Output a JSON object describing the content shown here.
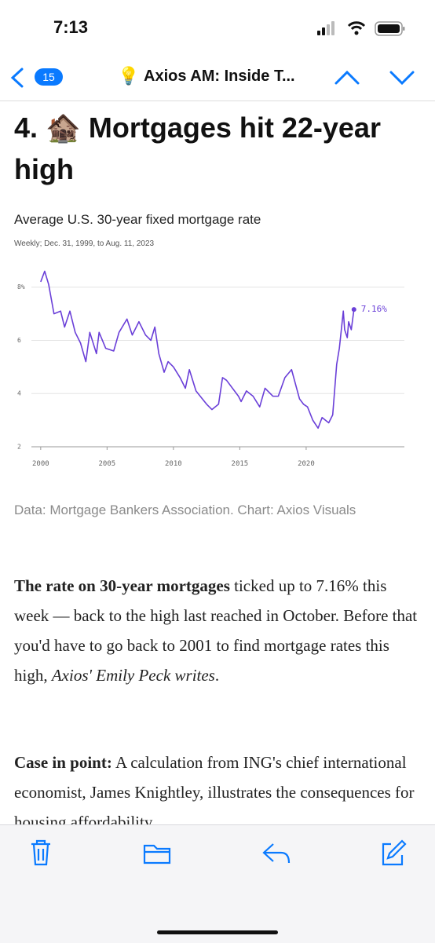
{
  "status_bar": {
    "time": "7:13"
  },
  "nav": {
    "badge": "15",
    "icon": "💡",
    "title": "Axios AM: Inside T..."
  },
  "article": {
    "heading": "4. 🏚️ Mortgages hit 22-year high",
    "source": "Data: Mortgage Bankers Association. Chart: Axios Visuals",
    "paragraphs": [
      {
        "lead": "The rate on 30-year mortgages",
        "text": " ticked up to 7.16% this week — back to the high last reached in October. Before that you'd have to go back to 2001 to find mortgage rates this high, ",
        "italic": "Axios' Emily Peck writes",
        "tail": "."
      },
      {
        "lead": "Case in point:",
        "text": " A calculation from ING's chief international economist, James Knightley, illustrates the consequences for housing affordability."
      }
    ]
  },
  "chart_data": {
    "type": "line",
    "title": "Average U.S. 30-year fixed mortgage rate",
    "subtitle": "Weekly; Dec. 31, 1999, to Aug. 11, 2023",
    "x": [
      2000.0,
      2000.3,
      2000.6,
      2001.0,
      2001.5,
      2001.8,
      2002.2,
      2002.6,
      2003.0,
      2003.4,
      2003.7,
      2004.2,
      2004.4,
      2004.9,
      2005.5,
      2005.9,
      2006.5,
      2006.9,
      2007.4,
      2007.9,
      2008.3,
      2008.6,
      2008.9,
      2009.3,
      2009.6,
      2010.0,
      2010.5,
      2010.9,
      2011.2,
      2011.7,
      2012.5,
      2012.9,
      2013.4,
      2013.7,
      2014.0,
      2014.9,
      2015.1,
      2015.5,
      2016.0,
      2016.5,
      2016.9,
      2017.5,
      2017.9,
      2018.4,
      2018.9,
      2019.5,
      2019.8,
      2020.1,
      2020.5,
      2020.9,
      2021.2,
      2021.7,
      2022.0,
      2022.3,
      2022.5,
      2022.8,
      2022.9,
      2023.1,
      2023.2,
      2023.4,
      2023.6
    ],
    "series": [
      {
        "name": "30-year fixed rate",
        "color": "#6a3fd8",
        "values": [
          8.2,
          8.6,
          8.1,
          7.0,
          7.1,
          6.5,
          7.1,
          6.3,
          5.9,
          5.2,
          6.3,
          5.5,
          6.3,
          5.7,
          5.6,
          6.3,
          6.8,
          6.2,
          6.7,
          6.2,
          6.0,
          6.5,
          5.5,
          4.8,
          5.2,
          5.0,
          4.6,
          4.2,
          4.9,
          4.1,
          3.6,
          3.4,
          3.6,
          4.6,
          4.5,
          3.9,
          3.7,
          4.1,
          3.9,
          3.5,
          4.2,
          3.9,
          3.9,
          4.6,
          4.9,
          3.8,
          3.6,
          3.5,
          3.0,
          2.7,
          3.1,
          2.9,
          3.2,
          5.1,
          5.7,
          7.1,
          6.4,
          6.1,
          6.7,
          6.4,
          7.16
        ],
        "value_labels": [
          null,
          null,
          null,
          null,
          null,
          null,
          null,
          null,
          null,
          null,
          null,
          null,
          null,
          null,
          null,
          null,
          null,
          null,
          null,
          null,
          null,
          null,
          null,
          null,
          null,
          null,
          null,
          null,
          null,
          null,
          null,
          null,
          null,
          null,
          null,
          null,
          null,
          null,
          null,
          null,
          null,
          null,
          null,
          null,
          null,
          null,
          null,
          null,
          null,
          null,
          null,
          null,
          null,
          null,
          null,
          null,
          null,
          null,
          null,
          null,
          "7.16%"
        ]
      }
    ],
    "xlim": [
      1999.3,
      2027.4
    ],
    "xticks": [
      2000,
      2005,
      2010,
      2015,
      2020
    ],
    "ylim": [
      2,
      8.7
    ],
    "yticks": [
      2,
      4,
      6,
      {
        "value": 8,
        "label": "8%"
      }
    ],
    "grid": true
  }
}
